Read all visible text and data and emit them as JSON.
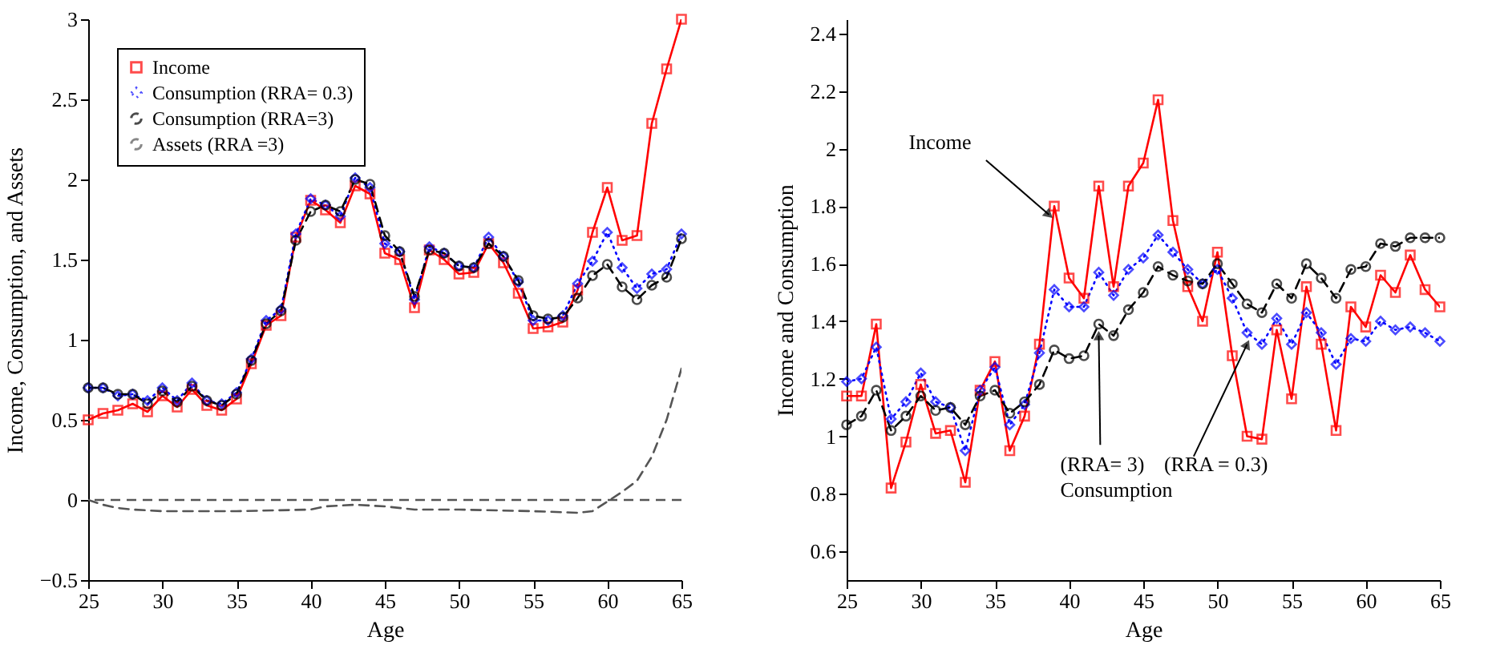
{
  "chart_data": [
    {
      "type": "line",
      "ylabel": "Income, Consumption, and Assets",
      "xlabel": "Age",
      "xlim": [
        25,
        65
      ],
      "xticks": [
        25,
        30,
        35,
        40,
        45,
        50,
        55,
        60,
        65
      ],
      "ylim": [
        -0.5,
        3
      ],
      "yticks": [
        -0.5,
        0,
        0.5,
        1,
        1.5,
        2,
        2.5,
        3
      ],
      "grid": false,
      "legend": "top left",
      "x": [
        25,
        26,
        27,
        28,
        29,
        30,
        31,
        32,
        33,
        34,
        35,
        36,
        37,
        38,
        39,
        40,
        41,
        42,
        43,
        44,
        45,
        46,
        47,
        48,
        49,
        50,
        51,
        52,
        53,
        54,
        55,
        56,
        57,
        58,
        59,
        60,
        61,
        62,
        63,
        64,
        65
      ],
      "series": [
        {
          "name": "Income",
          "color": "#ff0000",
          "marker": "square",
          "line_style": "solid",
          "values": [
            0.5,
            0.54,
            0.56,
            0.6,
            0.55,
            0.65,
            0.58,
            0.69,
            0.59,
            0.56,
            0.63,
            0.85,
            1.09,
            1.15,
            1.64,
            1.87,
            1.81,
            1.73,
            1.96,
            1.91,
            1.54,
            1.5,
            1.2,
            1.56,
            1.5,
            1.41,
            1.42,
            1.6,
            1.48,
            1.29,
            1.07,
            1.08,
            1.11,
            1.31,
            1.67,
            1.95,
            1.62,
            1.65,
            2.35,
            2.69,
            3.0
          ]
        },
        {
          "name": "Consumption (RRA= 0.3)",
          "color": "#0000ff",
          "marker": "diamond",
          "line_style": "dotted",
          "values": [
            0.7,
            0.7,
            0.65,
            0.66,
            0.62,
            0.7,
            0.62,
            0.73,
            0.62,
            0.6,
            0.67,
            0.88,
            1.12,
            1.19,
            1.66,
            1.88,
            1.84,
            1.77,
            2.01,
            1.95,
            1.6,
            1.55,
            1.25,
            1.58,
            1.54,
            1.46,
            1.45,
            1.64,
            1.52,
            1.36,
            1.12,
            1.12,
            1.15,
            1.35,
            1.49,
            1.67,
            1.45,
            1.32,
            1.41,
            1.44,
            1.66
          ]
        },
        {
          "name": "Consumption (RRA=3)",
          "color": "#000000",
          "marker": "circle",
          "line_style": "dashed",
          "values": [
            0.7,
            0.7,
            0.66,
            0.66,
            0.6,
            0.68,
            0.61,
            0.71,
            0.62,
            0.59,
            0.66,
            0.87,
            1.1,
            1.18,
            1.62,
            1.8,
            1.84,
            1.8,
            2.0,
            1.97,
            1.65,
            1.55,
            1.27,
            1.56,
            1.54,
            1.46,
            1.45,
            1.6,
            1.52,
            1.37,
            1.15,
            1.13,
            1.14,
            1.26,
            1.4,
            1.47,
            1.33,
            1.25,
            1.34,
            1.39,
            1.63
          ]
        },
        {
          "name": "Assets (RRA =3)",
          "color": "#555555",
          "marker": "none",
          "line_style": "dashed",
          "x": [
            25,
            26,
            27,
            28,
            30,
            35,
            40,
            41,
            43,
            45,
            47,
            50,
            55,
            58,
            59,
            60,
            61,
            62,
            63,
            64,
            65
          ],
          "values": [
            0,
            -0.03,
            -0.05,
            -0.06,
            -0.07,
            -0.07,
            -0.06,
            -0.04,
            -0.03,
            -0.04,
            -0.06,
            -0.06,
            -0.07,
            -0.08,
            -0.07,
            -0.01,
            0.05,
            0.12,
            0.27,
            0.5,
            0.82
          ]
        }
      ],
      "ref_lines": [
        {
          "axis": "y",
          "value": 0,
          "color": "#555555",
          "line_style": "dashed"
        }
      ]
    },
    {
      "type": "line",
      "ylabel": "Income and Consumption",
      "xlabel": "Age",
      "xlim": [
        25,
        65
      ],
      "xticks": [
        25,
        30,
        35,
        40,
        45,
        50,
        55,
        60,
        65
      ],
      "ylim": [
        0.5,
        2.45
      ],
      "yticks": [
        0.6,
        0.8,
        1,
        1.2,
        1.4,
        1.6,
        1.8,
        2,
        2.2,
        2.4
      ],
      "grid": false,
      "legend": false,
      "x": [
        25,
        26,
        27,
        28,
        29,
        30,
        31,
        32,
        33,
        34,
        35,
        36,
        37,
        38,
        39,
        40,
        41,
        42,
        43,
        44,
        45,
        46,
        47,
        48,
        49,
        50,
        51,
        52,
        53,
        54,
        55,
        56,
        57,
        58,
        59,
        60,
        61,
        62,
        63,
        64,
        65
      ],
      "series": [
        {
          "color": "#ff0000",
          "marker": "square",
          "line_style": "solid",
          "values": [
            1.14,
            1.14,
            1.39,
            0.82,
            0.98,
            1.18,
            1.01,
            1.02,
            0.84,
            1.16,
            1.26,
            0.95,
            1.07,
            1.32,
            1.8,
            1.55,
            1.48,
            1.87,
            1.52,
            1.87,
            1.95,
            2.17,
            1.75,
            1.52,
            1.4,
            1.64,
            1.28,
            1.0,
            0.99,
            1.37,
            1.13,
            1.52,
            1.32,
            1.02,
            1.45,
            1.38,
            1.56,
            1.5,
            1.63,
            1.51,
            1.45
          ]
        },
        {
          "color": "#0000ff",
          "marker": "diamond",
          "line_style": "dashed",
          "values": [
            1.19,
            1.2,
            1.31,
            1.06,
            1.12,
            1.22,
            1.12,
            1.1,
            0.95,
            1.16,
            1.24,
            1.04,
            1.11,
            1.29,
            1.51,
            1.45,
            1.45,
            1.57,
            1.49,
            1.58,
            1.62,
            1.7,
            1.64,
            1.58,
            1.53,
            1.58,
            1.48,
            1.36,
            1.32,
            1.41,
            1.32,
            1.43,
            1.36,
            1.25,
            1.34,
            1.33,
            1.4,
            1.37,
            1.38,
            1.36,
            1.33
          ]
        },
        {
          "color": "#000000",
          "marker": "circle",
          "line_style": "dotted",
          "values": [
            1.04,
            1.07,
            1.16,
            1.02,
            1.07,
            1.14,
            1.09,
            1.1,
            1.04,
            1.14,
            1.16,
            1.08,
            1.12,
            1.18,
            1.3,
            1.27,
            1.28,
            1.39,
            1.35,
            1.44,
            1.5,
            1.59,
            1.56,
            1.54,
            1.53,
            1.6,
            1.53,
            1.46,
            1.43,
            1.53,
            1.48,
            1.6,
            1.55,
            1.48,
            1.58,
            1.59,
            1.67,
            1.66,
            1.69,
            1.69,
            1.69
          ]
        }
      ],
      "annotations": [
        {
          "text": "Income",
          "x": 39,
          "y": 1.8
        },
        {
          "text": "(RRA= 3)",
          "x": 42,
          "y": 1.39
        },
        {
          "text": "(RRA = 0.3)",
          "x": 52,
          "y": 1.36
        },
        "Consumption"
      ]
    }
  ]
}
